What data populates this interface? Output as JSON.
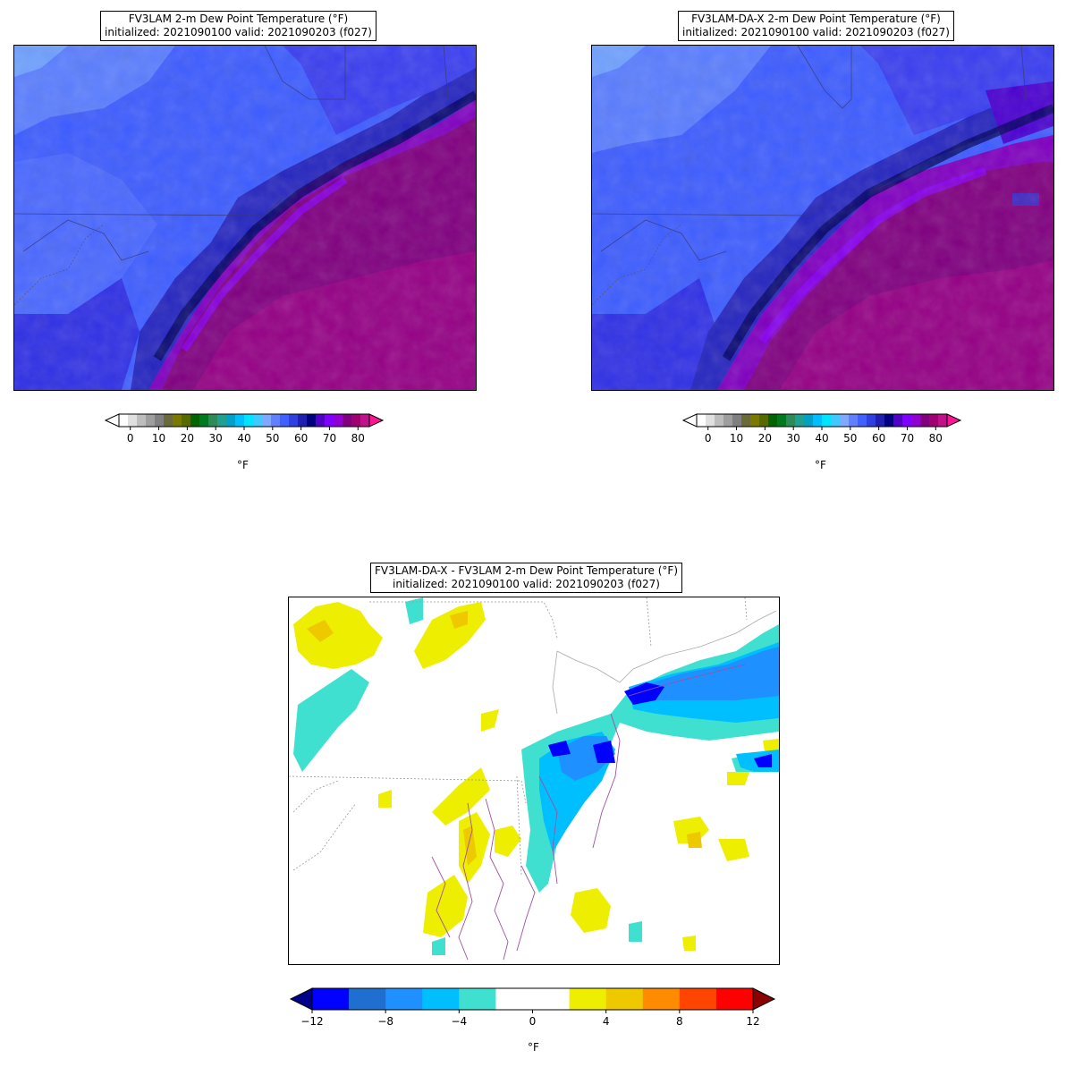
{
  "panels": [
    {
      "title_line1": "FV3LAM 2-m Dew Point Temperature (°F)",
      "title_line2": "initialized: 2021090100 valid: 2021090203 (f027)",
      "colorbar_ticks": [
        "0",
        "10",
        "20",
        "30",
        "40",
        "50",
        "60",
        "70",
        "80"
      ],
      "colorbar_unit": "°F"
    },
    {
      "title_line1": "FV3LAM-DA-X 2-m Dew Point Temperature (°F)",
      "title_line2": "initialized: 2021090100 valid: 2021090203 (f027)",
      "colorbar_ticks": [
        "0",
        "10",
        "20",
        "30",
        "40",
        "50",
        "60",
        "70",
        "80"
      ],
      "colorbar_unit": "°F"
    },
    {
      "title_line1": "FV3LAM-DA-X - FV3LAM 2-m Dew Point Temperature (°F)",
      "title_line2": "initialized: 2021090100 valid: 2021090203 (f027)",
      "colorbar_ticks": [
        "−12",
        "−8",
        "−4",
        "0",
        "4",
        "8",
        "12"
      ],
      "colorbar_unit": "°F"
    }
  ],
  "colormaps": {
    "dewpoint": [
      "#ffffff",
      "#e0e0e0",
      "#bdbdbd",
      "#9e9e9e",
      "#808080",
      "#6b6b3a",
      "#7a7a00",
      "#556b00",
      "#006400",
      "#007a1f",
      "#2e8b57",
      "#20a090",
      "#00a0c8",
      "#00bfff",
      "#00e5ff",
      "#40c8ff",
      "#80a8ff",
      "#6080ff",
      "#4060ff",
      "#3040e0",
      "#2020b0",
      "#000080",
      "#5000c8",
      "#8000ff",
      "#9000d0",
      "#800080",
      "#a00070",
      "#c0108a"
    ],
    "dewpoint_under": "#ffffff",
    "dewpoint_over": "#ff1493",
    "difference": [
      "#0000ff",
      "#1e6fd0",
      "#1e90ff",
      "#00bfff",
      "#40e0d0",
      "#ffffff",
      "#ffffff",
      "#eeee00",
      "#eec900",
      "#ff8c00",
      "#ff4500",
      "#ff0000"
    ],
    "difference_under": "#00008b",
    "difference_over": "#8b0000"
  }
}
